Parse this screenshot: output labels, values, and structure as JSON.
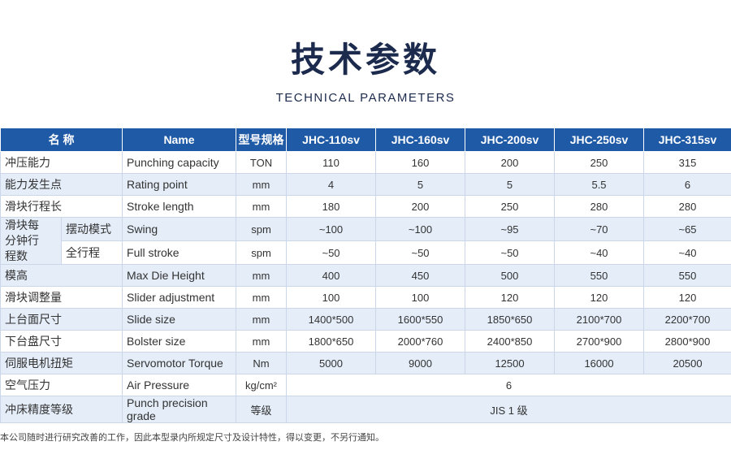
{
  "header": {
    "title": "技术参数",
    "subtitle": "TECHNICAL PARAMETERS"
  },
  "table": {
    "columns": [
      "名 称",
      "Name",
      "型号规格",
      "JHC-110sv",
      "JHC-160sv",
      "JHC-200sv",
      "JHC-250sv",
      "JHC-315sv"
    ],
    "rows": [
      [
        "冲压能力",
        "Punching capacity",
        "TON",
        "110",
        "160",
        "200",
        "250",
        "315"
      ],
      [
        "能力发生点",
        "Rating point",
        "mm",
        "4",
        "5",
        "5",
        "5.5",
        "6"
      ],
      [
        "滑块行程长",
        "Stroke length",
        "mm",
        "180",
        "200",
        "250",
        "280",
        "280"
      ],
      {
        "group": "滑块每分钟行程数",
        "rows": [
          [
            "摆动模式",
            "Swing",
            "spm",
            "~100",
            "~100",
            "~95",
            "~70",
            "~65"
          ],
          [
            "全行程",
            "Full stroke",
            "spm",
            "~50",
            "~50",
            "~50",
            "~40",
            "~40"
          ]
        ]
      },
      [
        "模高",
        "Max Die Height",
        "mm",
        "400",
        "450",
        "500",
        "550",
        "550"
      ],
      [
        "滑块调整量",
        "Slider adjustment",
        "mm",
        "100",
        "100",
        "120",
        "120",
        "120"
      ],
      [
        "上台面尺寸",
        "Slide size",
        "mm",
        "1400*500",
        "1600*550",
        "1850*650",
        "2100*700",
        "2200*700"
      ],
      [
        "下台盘尺寸",
        "Bolster size",
        "mm",
        "1800*650",
        "2000*760",
        "2400*850",
        "2700*900",
        "2800*900"
      ],
      [
        "伺服电机扭矩",
        "Servomotor Torque",
        "Nm",
        "5000",
        "9000",
        "12500",
        "16000",
        "20500"
      ],
      [
        "空气压力",
        "Air Pressure",
        "kg/cm²",
        "6"
      ],
      [
        "冲床精度等级",
        "Punch precision grade",
        "等级",
        "JIS 1 级"
      ]
    ]
  },
  "footnote": "本公司随时进行研究改善的工作，因此本型录内所规定尺寸及设计特性，得以变更，不另行通知。"
}
